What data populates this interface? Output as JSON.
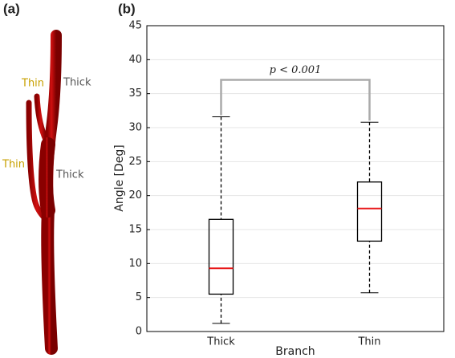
{
  "panel_a": {
    "panel_label": "(a)",
    "labels": [
      "Thin",
      "Thick",
      "Thin",
      "Thick"
    ]
  },
  "chart_data": {
    "type": "box",
    "panel_label": "(b)",
    "x_label": "Branch",
    "y_label": "Angle [Deg]",
    "categories": [
      "Thick",
      "Thin"
    ],
    "boxes": [
      {
        "whisker_low": 1.2,
        "q1": 5.5,
        "median": 9.3,
        "q3": 16.5,
        "whisker_high": 31.6
      },
      {
        "whisker_low": 5.7,
        "q1": 13.3,
        "median": 18.1,
        "q3": 22.0,
        "whisker_high": 30.8
      }
    ],
    "box_color": "#000000",
    "median_color": "#e8191a",
    "annotation": "p < 0.001",
    "ylim": [
      0,
      45
    ],
    "yticks": [
      0,
      5,
      10,
      15,
      20,
      25,
      30,
      35,
      40,
      45
    ],
    "grid": true
  }
}
